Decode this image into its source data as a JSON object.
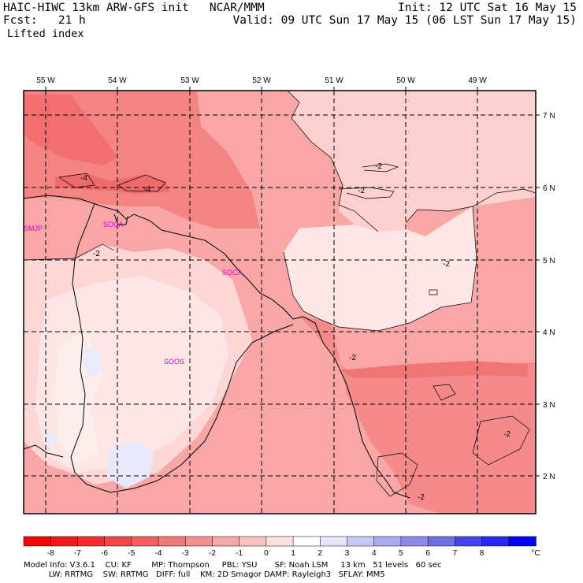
{
  "header": {
    "model_line": "HAIC-HIWC 13km ARW-GFS init   NCAR/MMM",
    "fcst_line": "Fcst:   21 h",
    "field_name": "Lifted index",
    "init_line": "Init: 12 UTC Sat 16 May 15",
    "valid_line": "Valid: 09 UTC Sun 17 May 15 (06 LST Sun 17 May 15)"
  },
  "map": {
    "lon_labels": [
      "55 W",
      "54 W",
      "53 W",
      "52 W",
      "51 W",
      "50 W",
      "49 W"
    ],
    "lat_labels": [
      "7 N",
      "6 N",
      "5 N",
      "4 N",
      "3 N",
      "2 N"
    ],
    "stations": [
      "SMJP",
      "SOCA",
      "SOCA",
      "SOOS"
    ],
    "contour_labels": [
      "-4",
      "-4",
      "-2",
      "-2",
      "-2",
      "-2",
      "-2",
      "-2",
      "-2"
    ],
    "colors": {
      "land_light": "#fde6e6",
      "pale": "#fdd0d0",
      "mid": "#f9a6a6",
      "strong": "#f48484",
      "stronger": "#ef6a6a",
      "positive": "#e8e8fb"
    }
  },
  "colorbar": {
    "ticks": [
      "-8",
      "-7",
      "-6",
      "-5",
      "-4",
      "-3",
      "-2",
      "-1",
      "0",
      "1",
      "2",
      "3",
      "4",
      "5",
      "6",
      "7",
      "8"
    ],
    "unit": "°C",
    "colors": [
      "#ff0000",
      "#f51818",
      "#f33030",
      "#f04848",
      "#f26060",
      "#f37878",
      "#f69090",
      "#f8a8a8",
      "#fac3c3",
      "#fde0e0",
      "#ffffff",
      "#e6e6fa",
      "#c8c8f5",
      "#aaaaf0",
      "#8c8cec",
      "#6e6ee6",
      "#4646e6",
      "#2828f0",
      "#0000ff"
    ]
  },
  "footer": {
    "line1": "Model Info: V3.6.1    CU: KF        MP: Thompson     PBL: YSU       SF: Noah LSM     13 km   51 levels   60 sec",
    "line2": "          LW: RRTMG    SW: RRTMG   DIFF: full    KM: 2D Smagor DAMP: Rayleigh3   SFLAY: MM5"
  }
}
